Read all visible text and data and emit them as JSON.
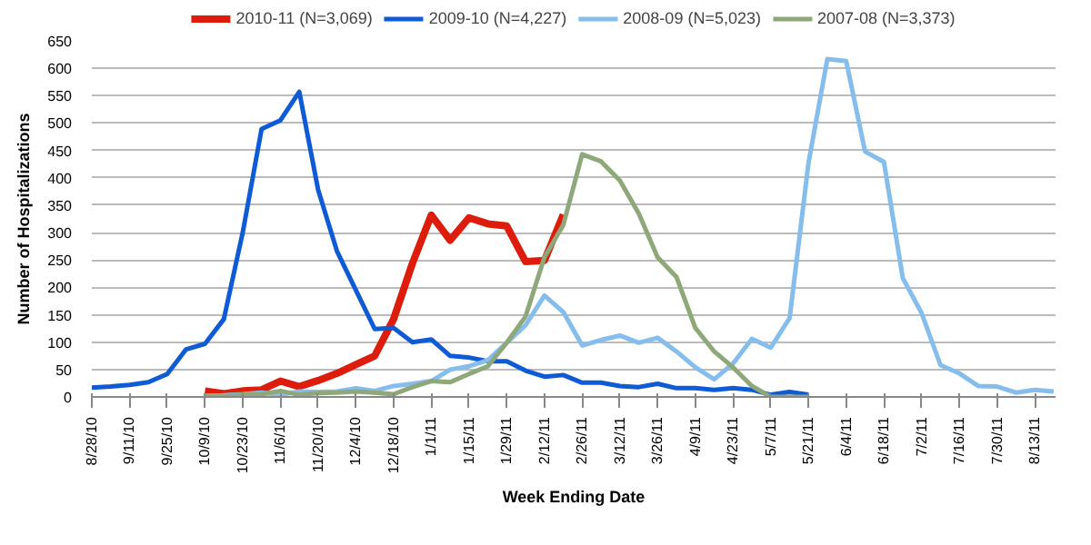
{
  "chart_data": {
    "type": "line",
    "xlabel": "Week Ending Date",
    "ylabel": "Number of Hospitalizations",
    "categories": [
      "8/28/10",
      null,
      "9/11/10",
      null,
      "9/25/10",
      null,
      "10/9/10",
      null,
      "10/23/10",
      null,
      "11/6/10",
      null,
      "11/20/10",
      null,
      "12/4/10",
      null,
      "12/18/10",
      null,
      "1/1/11",
      null,
      "1/15/11",
      null,
      "1/29/11",
      null,
      "2/12/11",
      null,
      "2/26/11",
      null,
      "3/12/11",
      null,
      "3/26/11",
      null,
      "4/9/11",
      null,
      "4/23/11",
      null,
      "5/7/11",
      null,
      "5/21/11",
      null,
      "6/4/11",
      null,
      "6/18/11",
      null,
      "7/2/11",
      null,
      "7/16/11",
      null,
      "7/30/11",
      null,
      "8/13/11",
      null
    ],
    "ylim": [
      0,
      650
    ],
    "yticks": [
      0,
      50,
      100,
      150,
      200,
      250,
      300,
      350,
      400,
      450,
      500,
      550,
      600,
      650
    ],
    "grid": "y",
    "legend": "top",
    "marker": "none",
    "line_style": "solid",
    "series": [
      {
        "name": "2010-11 (N=3,069)",
        "color": "#dd1c0c",
        "values": [
          null,
          null,
          null,
          null,
          null,
          null,
          11,
          6,
          11,
          13,
          29,
          19,
          30,
          43,
          59,
          75,
          142,
          244,
          332,
          286,
          327,
          316,
          312,
          247,
          249,
          333,
          null,
          null,
          null,
          null,
          null,
          null,
          null,
          null,
          null,
          null,
          null,
          null,
          null,
          null,
          null,
          null,
          null,
          null,
          null,
          null,
          null,
          null,
          null,
          null,
          null,
          null
        ]
      },
      {
        "name": "2009-10 (N=4,227)",
        "color": "#0f5bd6",
        "values": [
          17,
          19,
          22,
          27,
          42,
          87,
          97,
          142,
          300,
          489,
          505,
          557,
          378,
          266,
          195,
          124,
          126,
          100,
          105,
          75,
          72,
          65,
          65,
          48,
          37,
          40,
          26,
          26,
          20,
          18,
          24,
          16,
          16,
          13,
          16,
          13,
          4,
          9,
          4,
          null,
          null,
          null,
          null,
          null,
          null,
          null,
          null,
          null,
          null,
          null,
          null,
          null
        ]
      },
      {
        "name": "2008-09 (N=5,023)",
        "color": "#85bdec",
        "values": [
          null,
          null,
          null,
          null,
          null,
          null,
          2,
          3,
          5,
          8,
          4,
          10,
          9,
          10,
          16,
          11,
          20,
          24,
          29,
          50,
          56,
          67,
          99,
          131,
          185,
          155,
          94,
          104,
          112,
          99,
          108,
          83,
          54,
          32,
          61,
          106,
          90,
          144,
          427,
          617,
          613,
          448,
          429,
          217,
          153,
          58,
          43,
          20,
          19,
          8,
          13,
          10
        ]
      },
      {
        "name": "2007-08 (N=3,373)",
        "color": "#8fa87a",
        "values": [
          null,
          null,
          null,
          null,
          null,
          null,
          2,
          1,
          4,
          5,
          11,
          4,
          7,
          8,
          10,
          8,
          5,
          18,
          29,
          27,
          42,
          56,
          99,
          147,
          255,
          314,
          443,
          430,
          395,
          335,
          255,
          219,
          126,
          83,
          54,
          20,
          0,
          0,
          0,
          null,
          null,
          null,
          null,
          null,
          null,
          null,
          null,
          null,
          null,
          null,
          null,
          null
        ]
      }
    ]
  }
}
